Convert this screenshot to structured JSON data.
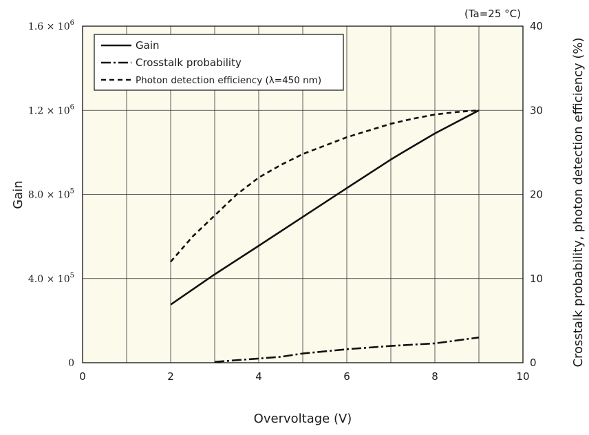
{
  "chart_data": {
    "type": "line",
    "xlabel": "Overvoltage (V)",
    "ylabel": "Gain",
    "y2label": "Crosstalk probability, photon detection efficiency (%)",
    "annotation": "(Ta=25 °C)",
    "xlim": [
      0,
      10
    ],
    "ylim": [
      0,
      1600000
    ],
    "y2lim": [
      0,
      40
    ],
    "grid": true,
    "legend_position": "top-left",
    "x_ticks": [
      {
        "value": 0,
        "label": "0"
      },
      {
        "value": 2,
        "label": "2"
      },
      {
        "value": 4,
        "label": "4"
      },
      {
        "value": 6,
        "label": "6"
      },
      {
        "value": 8,
        "label": "8"
      },
      {
        "value": 10,
        "label": "10"
      }
    ],
    "y_ticks": [
      {
        "value": 0,
        "mant": "0",
        "exp": ""
      },
      {
        "value": 400000,
        "mant": "4.0 × 10",
        "exp": "5"
      },
      {
        "value": 800000,
        "mant": "8.0 × 10",
        "exp": "5"
      },
      {
        "value": 1200000,
        "mant": "1.2 × 10",
        "exp": "6"
      },
      {
        "value": 1600000,
        "mant": "1.6 × 10",
        "exp": "6"
      }
    ],
    "y2_ticks": [
      {
        "value": 0,
        "label": "0"
      },
      {
        "value": 10,
        "label": "10"
      },
      {
        "value": 20,
        "label": "20"
      },
      {
        "value": 30,
        "label": "30"
      },
      {
        "value": 40,
        "label": "40"
      }
    ],
    "series": [
      {
        "name": "Gain",
        "axis": "left",
        "style": "solid",
        "x": [
          2,
          3,
          4,
          5,
          6,
          7,
          7.3,
          8,
          9
        ],
        "y": [
          276000,
          420000,
          556000,
          693000,
          830000,
          966000,
          1004000,
          1090000,
          1200000
        ]
      },
      {
        "name": "Crosstalk probability",
        "axis": "right",
        "style": "dashdot",
        "x": [
          3,
          3.5,
          4,
          4.5,
          5,
          6,
          7,
          8,
          9
        ],
        "y": [
          0.1,
          0.3,
          0.5,
          0.7,
          1.1,
          1.6,
          2.0,
          2.3,
          3.0
        ]
      },
      {
        "name": "Photon detection efficiency (λ=450 nm)",
        "axis": "right",
        "style": "dashed",
        "x": [
          2,
          2.5,
          3,
          3.5,
          4,
          4.5,
          5,
          5.5,
          6,
          6.5,
          7,
          7.5,
          8,
          8.5,
          9
        ],
        "y": [
          12,
          15,
          17.5,
          20,
          22,
          23.5,
          24.8,
          25.8,
          26.8,
          27.6,
          28.4,
          29,
          29.5,
          29.8,
          30
        ]
      }
    ]
  }
}
